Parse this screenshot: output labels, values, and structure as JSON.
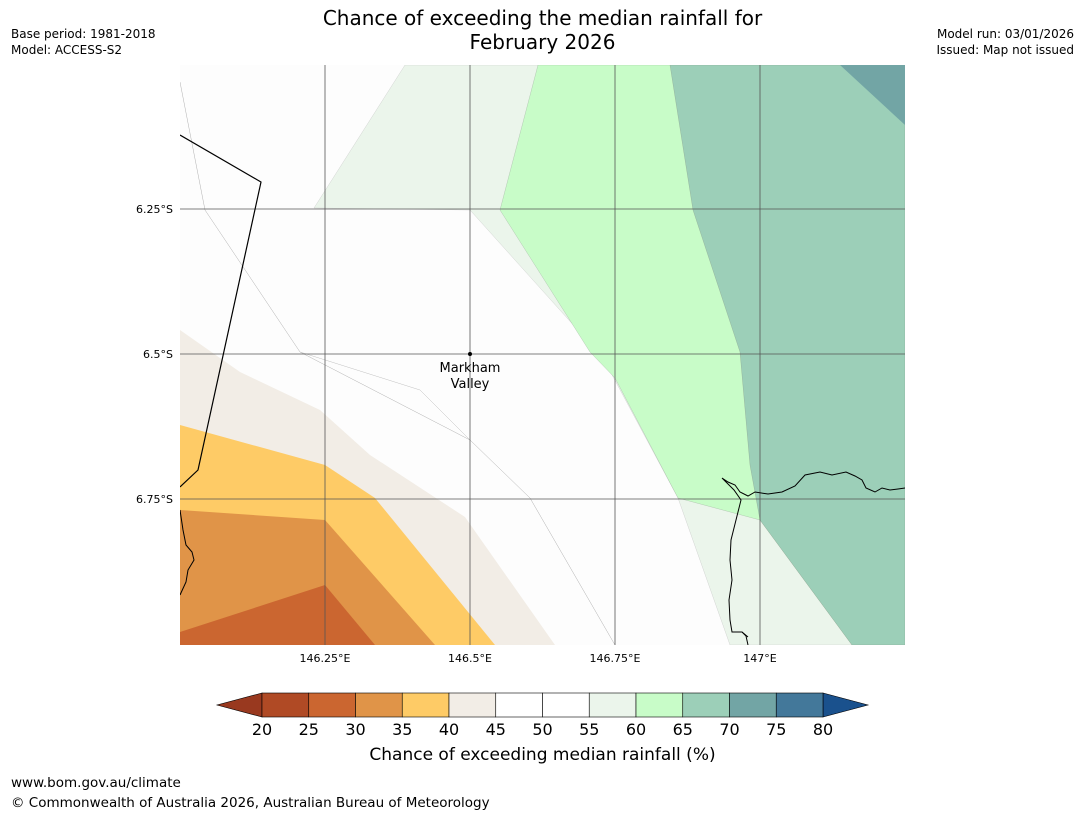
{
  "header": {
    "title_line1": "Chance of exceeding the median rainfall for",
    "title_line2": "February 2026",
    "base_period": "Base period: 1981-2018",
    "model": "Model: ACCESS-S2",
    "model_run": "Model run: 03/01/2026",
    "issued": "Issued: Map not issued"
  },
  "map": {
    "lat_labels": [
      "6.25°S",
      "6.5°S",
      "6.75°S"
    ],
    "lon_labels": [
      "146.25°E",
      "146.5°E",
      "146.75°E",
      "147°E"
    ],
    "place": {
      "name_line1": "Markham",
      "name_line2": "Valley"
    }
  },
  "colorbar": {
    "ticks": [
      "20",
      "25",
      "30",
      "35",
      "40",
      "45",
      "50",
      "55",
      "60",
      "65",
      "70",
      "75",
      "80"
    ],
    "colors": [
      "#b04a25",
      "#cb6630",
      "#e09448",
      "#fecb66",
      "#f2ede6",
      "#ffffff",
      "#ffffff",
      "#ebf5eb",
      "#c8fcc8",
      "#9ccfb8",
      "#72a5a5",
      "#43789a"
    ],
    "under_color": "#99391f",
    "over_color": "#1a518d",
    "label": "Chance of exceeding median rainfall (%)"
  },
  "footer": {
    "url": "www.bom.gov.au/climate",
    "copyright": "© Commonwealth of Australia 2026, Australian Bureau of Meteorology"
  }
}
